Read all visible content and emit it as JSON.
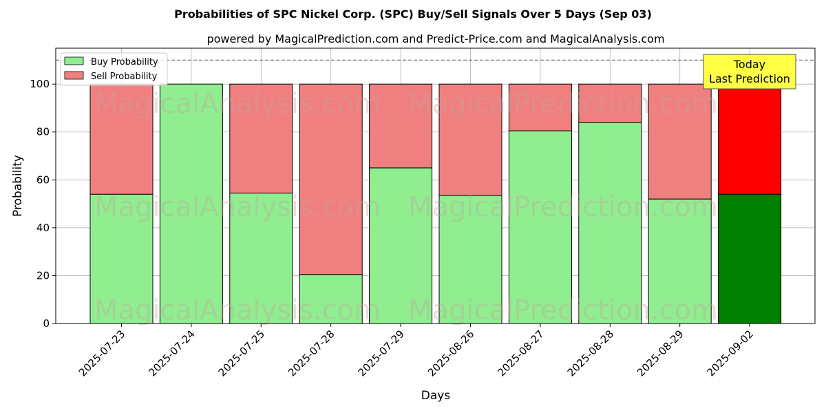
{
  "chart_data": {
    "type": "bar",
    "stacked": true,
    "title": "Probabilities of SPC Nickel Corp. (SPC) Buy/Sell Signals Over 5 Days (Sep 03)",
    "subtitle": "powered by MagicalPrediction.com and Predict-Price.com and MagicalAnalysis.com",
    "xlabel": "Days",
    "ylabel": "Probability",
    "ylim": [
      0,
      115
    ],
    "yticks": [
      0,
      20,
      40,
      60,
      80,
      100
    ],
    "grid": true,
    "legend_position": "top-left",
    "reference_line": 110,
    "categories": [
      "2025-07-23",
      "2025-07-24",
      "2025-07-25",
      "2025-07-28",
      "2025-07-29",
      "2025-08-26",
      "2025-08-27",
      "2025-08-28",
      "2025-08-29",
      "2025-09-02"
    ],
    "series": [
      {
        "name": "Buy Probability",
        "color": "#90ee90",
        "highlight_color": "#008000",
        "values": [
          54,
          100,
          54.5,
          20.5,
          65,
          53.5,
          80.5,
          84,
          52,
          54
        ]
      },
      {
        "name": "Sell Probability",
        "color": "#f08080",
        "highlight_color": "#ff0000",
        "values": [
          46,
          0,
          45.5,
          79.5,
          35,
          46.5,
          19.5,
          16,
          48,
          46
        ]
      }
    ],
    "highlight_index": 9,
    "annotation": {
      "line1": "Today",
      "line2": "Last Prediction",
      "color": "#ffff44"
    },
    "watermarks": [
      "MagicalAnalysis.com",
      "MagicalPrediction.com",
      "MagicalAnalysis.com",
      "MagicalPrediction.com",
      "MagicalAnalysis.com",
      "MagicalPrediction.com"
    ]
  }
}
